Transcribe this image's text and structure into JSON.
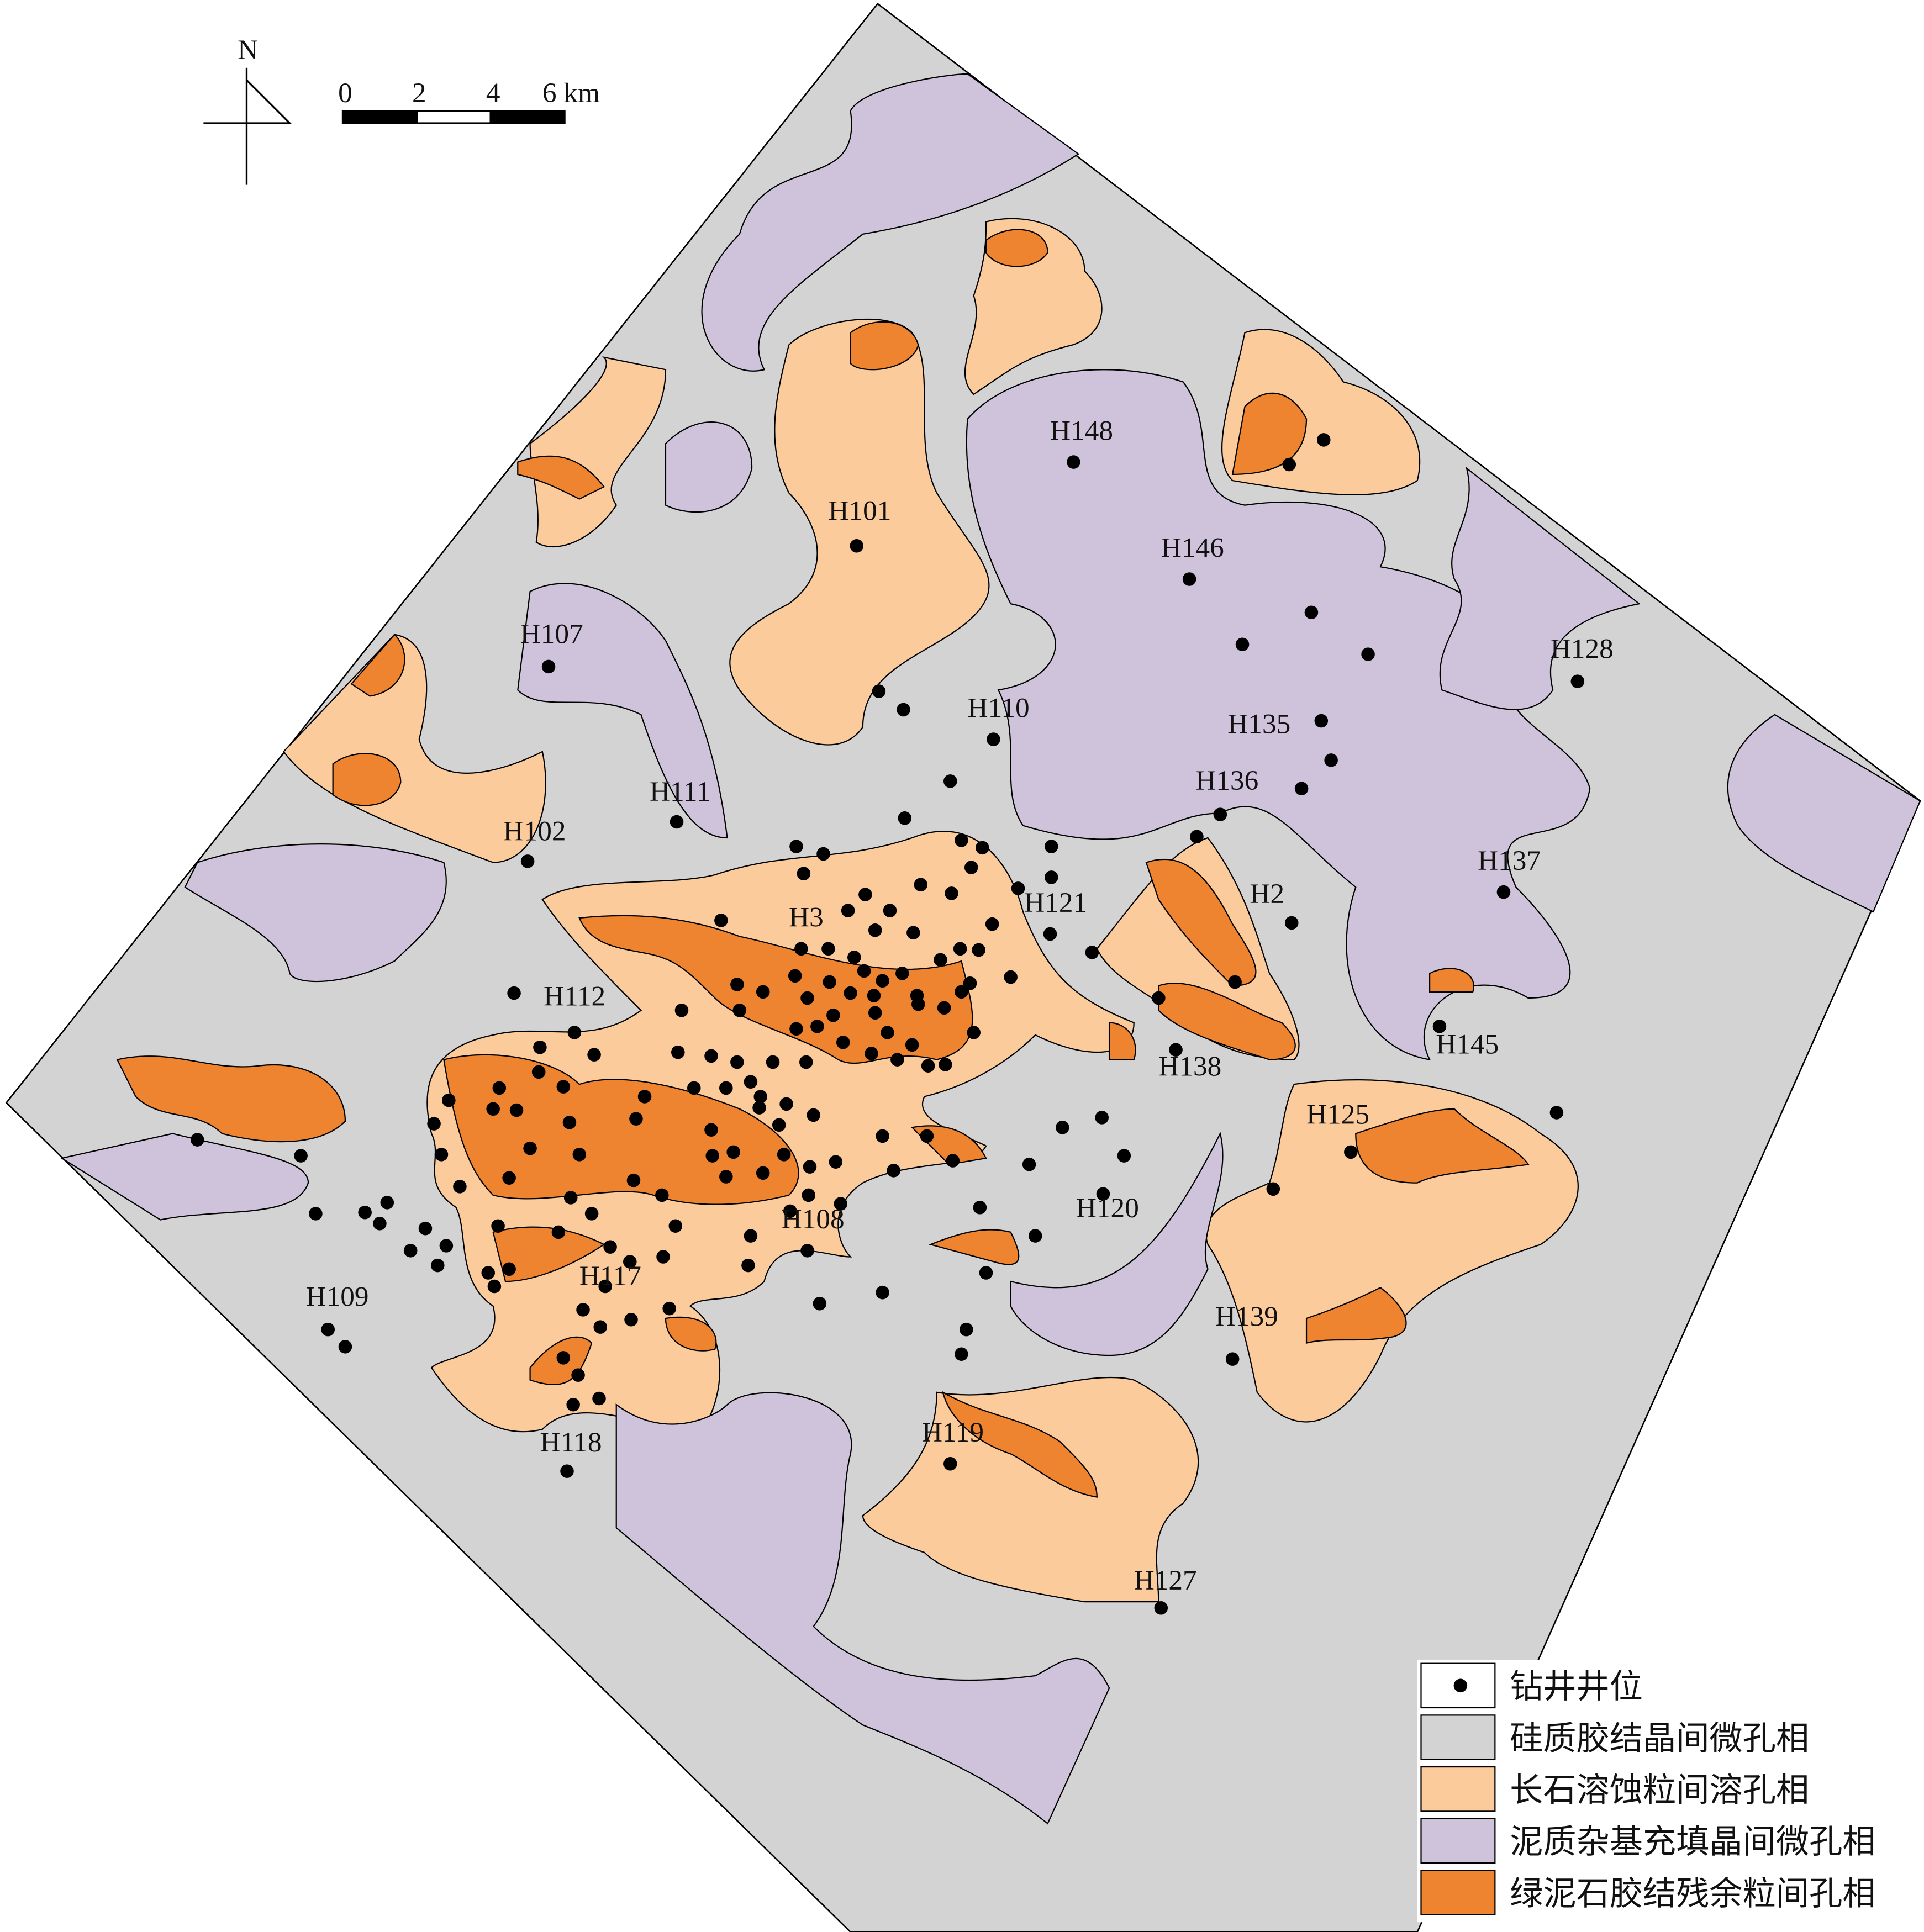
{
  "north_label": "N",
  "scale_bar": {
    "labels": [
      "0",
      "2",
      "4",
      "6 km"
    ]
  },
  "wells": [
    {
      "label": "H148"
    },
    {
      "label": "H101"
    },
    {
      "label": "H146"
    },
    {
      "label": "H107"
    },
    {
      "label": "H128"
    },
    {
      "label": "H110"
    },
    {
      "label": "H135"
    },
    {
      "label": "H136"
    },
    {
      "label": "H111"
    },
    {
      "label": "H102"
    },
    {
      "label": "H137"
    },
    {
      "label": "H2"
    },
    {
      "label": "H121"
    },
    {
      "label": "H3"
    },
    {
      "label": "H112"
    },
    {
      "label": "H138"
    },
    {
      "label": "H145"
    },
    {
      "label": "H125"
    },
    {
      "label": "H120"
    },
    {
      "label": "H108"
    },
    {
      "label": "H117"
    },
    {
      "label": "H109"
    },
    {
      "label": "H139"
    },
    {
      "label": "H119"
    },
    {
      "label": "H118"
    },
    {
      "label": "H127"
    }
  ],
  "legend": [
    {
      "label": "钻井井位",
      "color": "#000000"
    },
    {
      "label": "硅质胶结晶间微孔相",
      "color": "#d3d3d3"
    },
    {
      "label": "长石溶蚀粒间溶孔相",
      "color": "#fbcb9b"
    },
    {
      "label": "泥质杂基充填晶间微孔相",
      "color": "#cfc3dc"
    },
    {
      "label": "绿泥石胶结残余粒间孔相",
      "color": "#ef8430"
    }
  ]
}
